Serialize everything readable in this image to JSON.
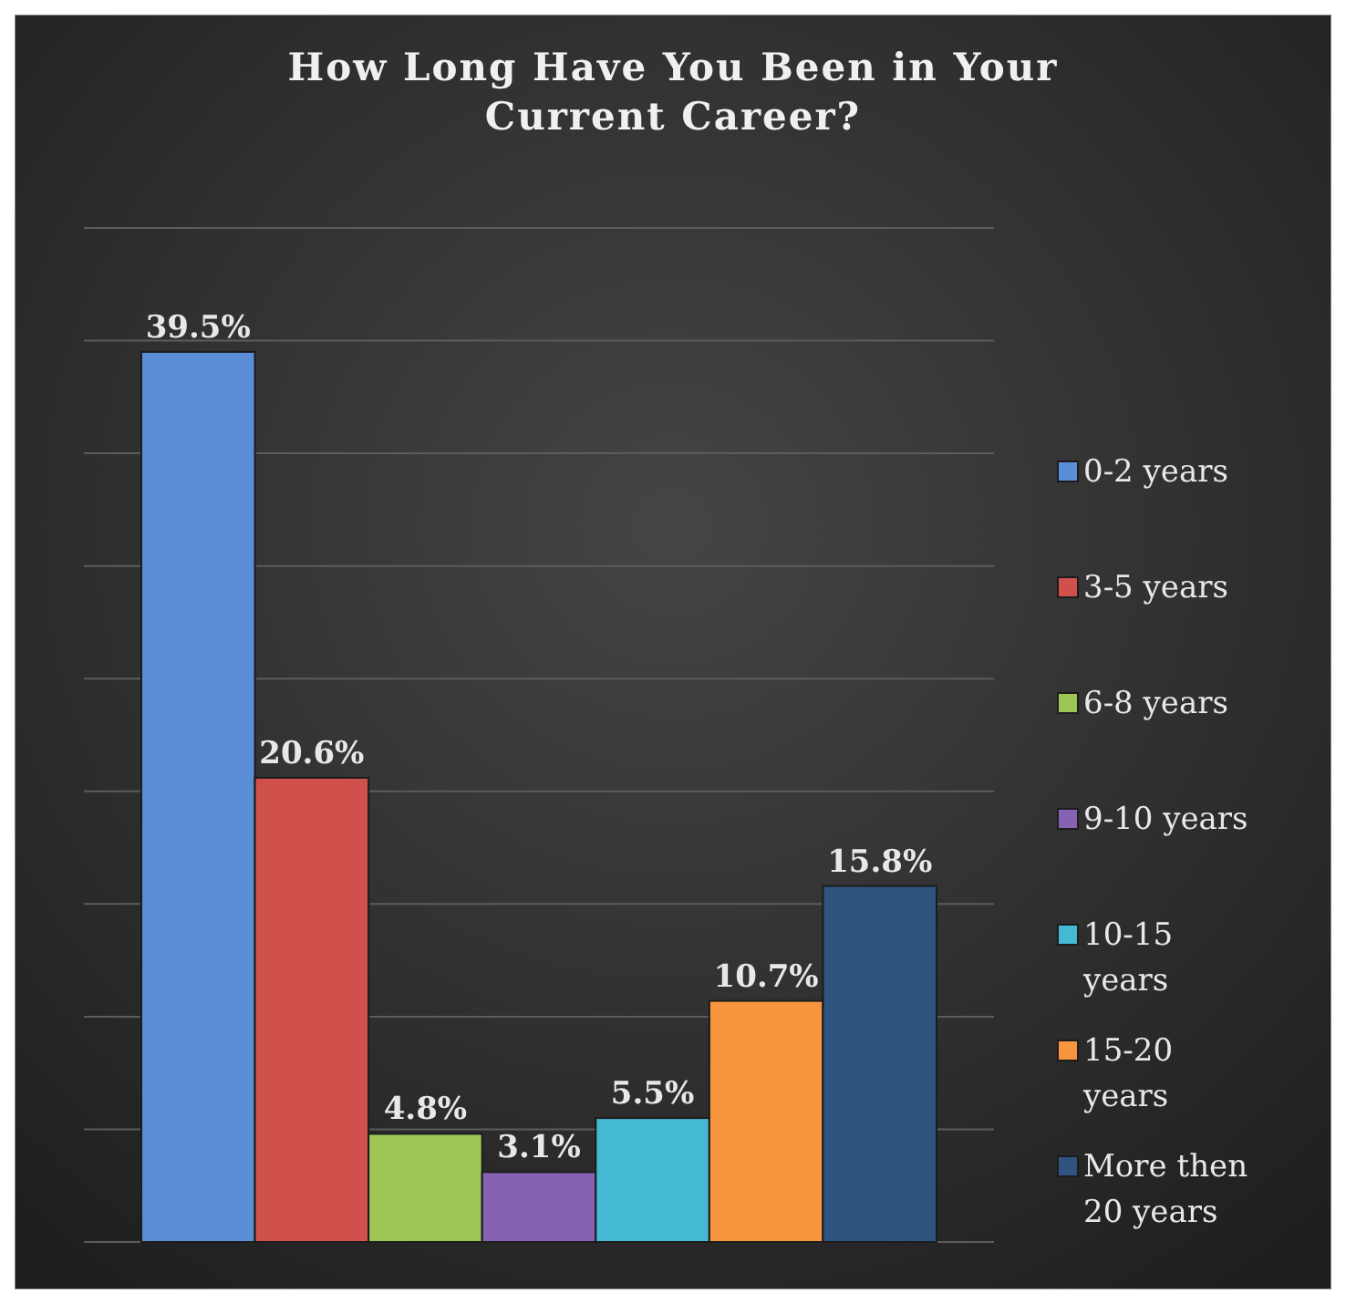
{
  "chart_data": {
    "type": "bar",
    "title": "How Long Have You Been in Your Current Career?",
    "categories": [
      null
    ],
    "series": [
      {
        "name": "0-2 years",
        "color": "#5a8ed6",
        "values": [
          39.5
        ],
        "value_labels": [
          "39.5%"
        ]
      },
      {
        "name": "3-5 years",
        "color": "#d0504c",
        "values": [
          20.6
        ],
        "value_labels": [
          "20.6%"
        ]
      },
      {
        "name": "6-8 years",
        "color": "#9cc554",
        "values": [
          4.8
        ],
        "value_labels": [
          "4.8%"
        ]
      },
      {
        "name": "9-10 years",
        "color": "#8562b2",
        "values": [
          3.1
        ],
        "value_labels": [
          "3.1%"
        ]
      },
      {
        "name": "10-15 years",
        "color": "#45b8d2",
        "values": [
          5.5
        ],
        "value_labels": [
          "5.5%"
        ]
      },
      {
        "name": "15-20 years",
        "color": "#f7953f",
        "values": [
          10.7
        ],
        "value_labels": [
          "10.7%"
        ]
      },
      {
        "name": "More then 20 years",
        "color": "#2f5480",
        "values": [
          15.8
        ],
        "value_labels": [
          "15.8%"
        ]
      }
    ],
    "ylim": [
      0,
      45
    ],
    "yticks": [
      {
        "value": 0,
        "label": null
      },
      {
        "value": 5,
        "label": null
      },
      {
        "value": 10,
        "label": null
      },
      {
        "value": 15,
        "label": null
      },
      {
        "value": 20,
        "label": null
      },
      {
        "value": 25,
        "label": null
      },
      {
        "value": 30,
        "label": null
      },
      {
        "value": 35,
        "label": null
      },
      {
        "value": 40,
        "label": null
      },
      {
        "value": 45,
        "label": null
      }
    ],
    "grid": "y",
    "legend": "right"
  }
}
